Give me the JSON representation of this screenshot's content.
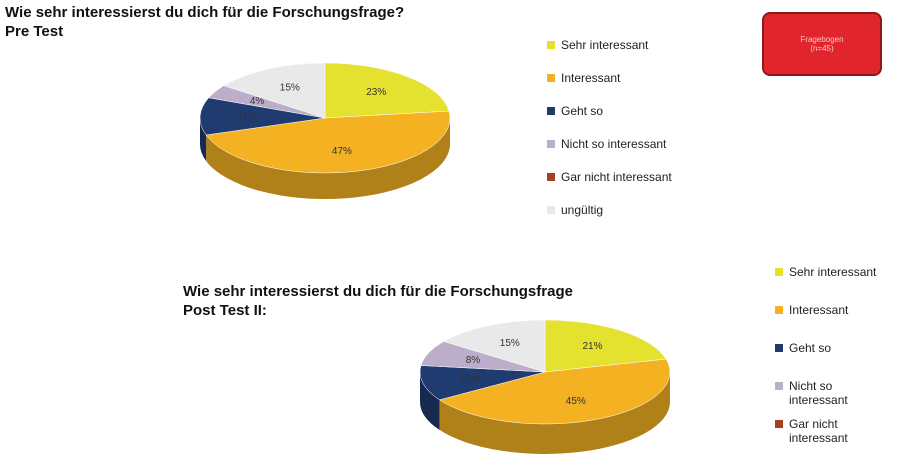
{
  "badge": {
    "lines": [
      "Fragebogen",
      "(n=45)"
    ]
  },
  "chart_data": [
    {
      "type": "pie",
      "title": "Wie sehr interessierst du dich für die Forschungsfrage?",
      "subtitle": "Pre Test",
      "categories": [
        "Sehr interessant",
        "Interessant",
        "Geht so",
        "Nicht so interessant",
        "Gar nicht interessant",
        "ungültig"
      ],
      "values": [
        23,
        47,
        11,
        4,
        0,
        15
      ],
      "value_labels": [
        "23%",
        "47%",
        "11%",
        "4%",
        null,
        "15%"
      ],
      "colors": [
        "#e4e22e",
        "#f4b223",
        "#1f3b6f",
        "#bcaecb",
        "#a3421d",
        "#e9e9e9"
      ]
    },
    {
      "type": "pie",
      "title": "Wie sehr interessierst du dich für die Forschungsfrage",
      "subtitle": "Post Test II:",
      "categories": [
        "Sehr interessant",
        "Interessant",
        "Geht so",
        "Nicht so interessant",
        "Gar nicht interessant",
        null
      ],
      "values": [
        21,
        45,
        11,
        8,
        0,
        15
      ],
      "value_labels": [
        "21%",
        "45%",
        "11%",
        "8%",
        null,
        "15%"
      ],
      "colors": [
        "#e4e22e",
        "#f4b223",
        "#1f3b6f",
        "#bcaecb",
        "#a3421d",
        "#e9e9e9"
      ]
    }
  ]
}
